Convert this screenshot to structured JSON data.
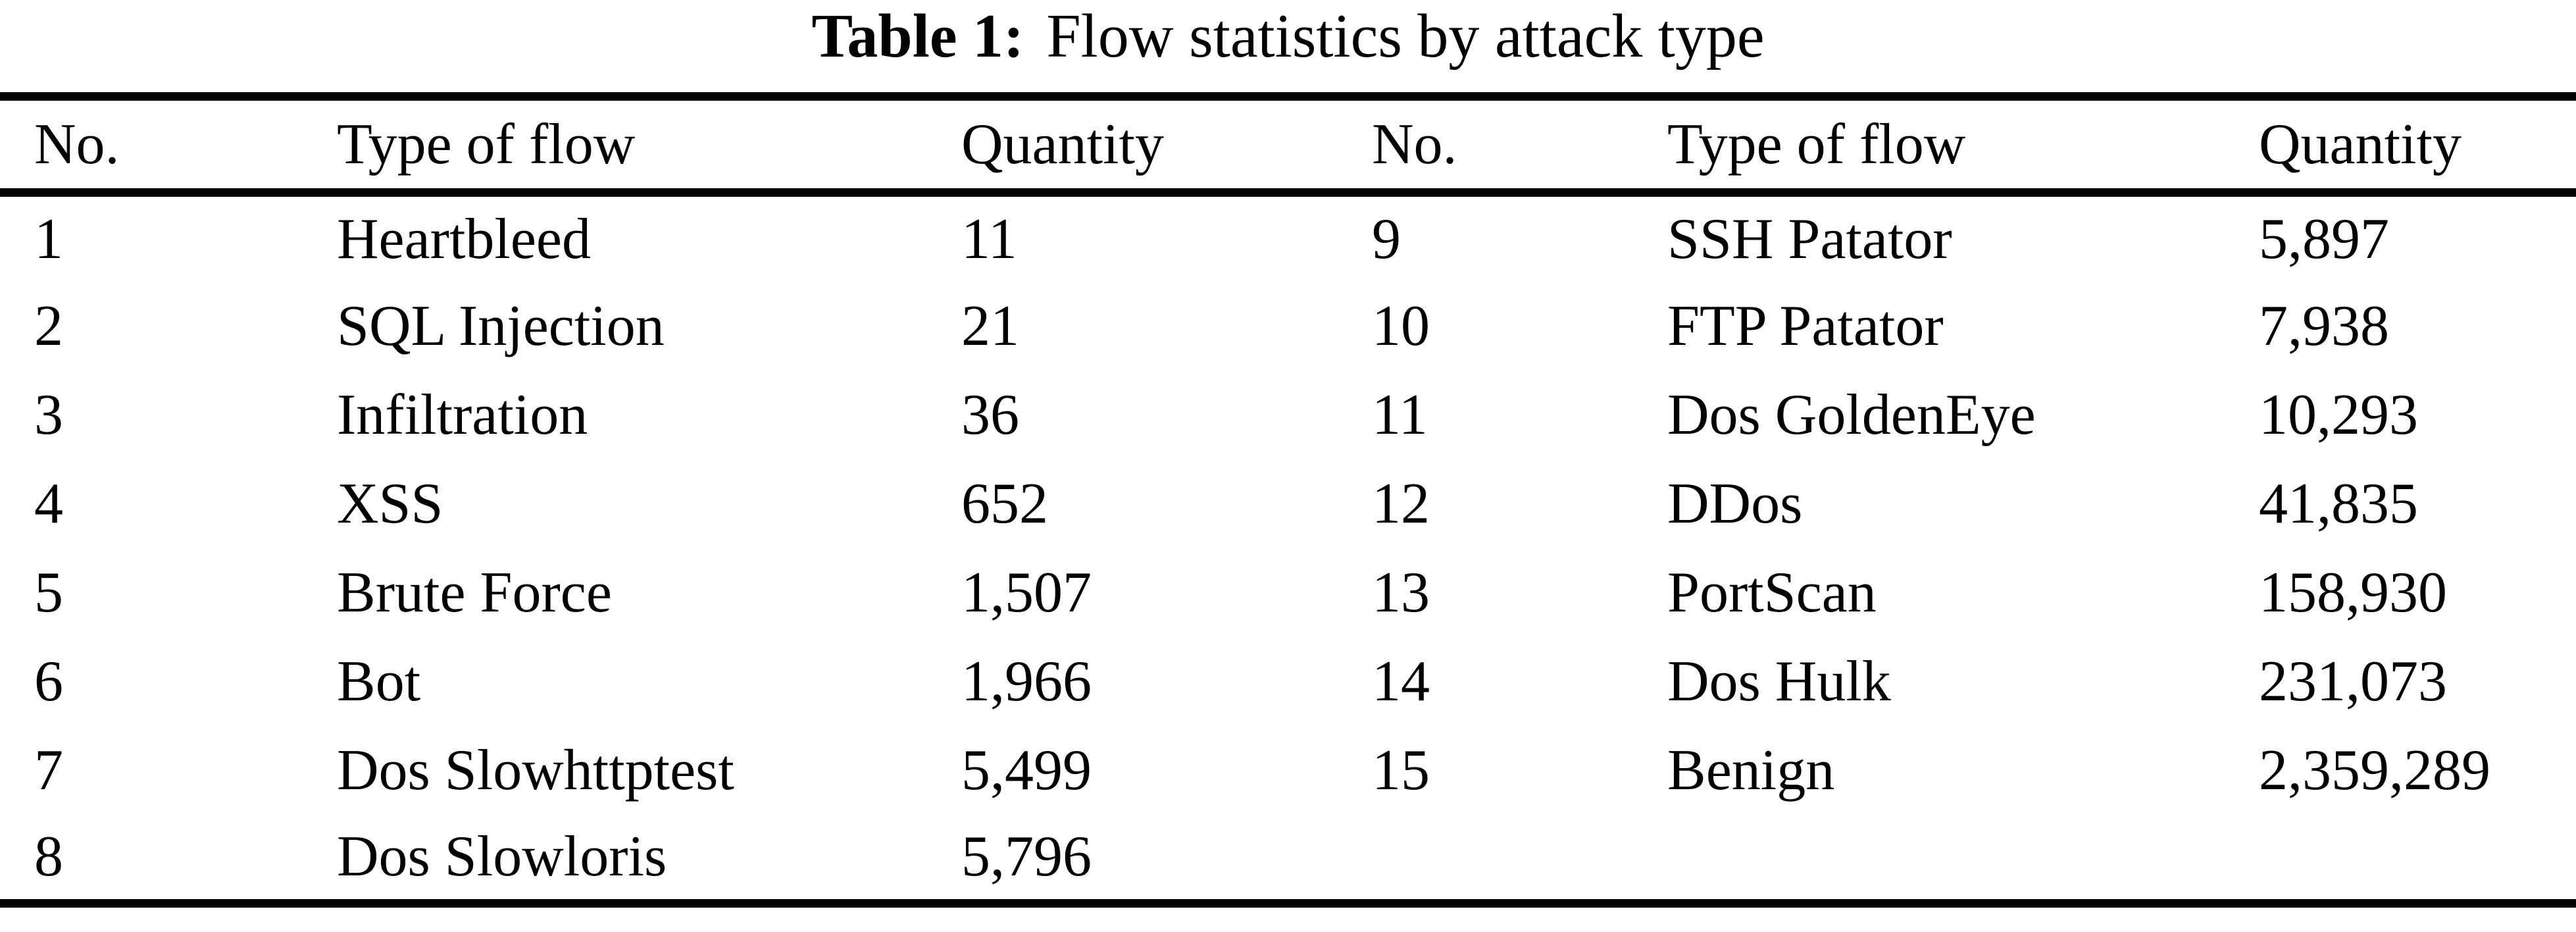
{
  "title": {
    "label": "Table 1:",
    "text": "Flow statistics by attack type"
  },
  "table": {
    "columns": [
      "No.",
      "Type of flow",
      "Quantity"
    ],
    "left": [
      {
        "no": "1",
        "type": "Heartbleed",
        "qty": "11"
      },
      {
        "no": "2",
        "type": "SQL Injection",
        "qty": "21"
      },
      {
        "no": "3",
        "type": "Infiltration",
        "qty": "36"
      },
      {
        "no": "4",
        "type": "XSS",
        "qty": "652"
      },
      {
        "no": "5",
        "type": "Brute Force",
        "qty": "1,507"
      },
      {
        "no": "6",
        "type": "Bot",
        "qty": "1,966"
      },
      {
        "no": "7",
        "type": "Dos Slowhttptest",
        "qty": "5,499"
      },
      {
        "no": "8",
        "type": "Dos Slowloris",
        "qty": "5,796"
      }
    ],
    "right": [
      {
        "no": "9",
        "type": "SSH Patator",
        "qty": "5,897"
      },
      {
        "no": "10",
        "type": "FTP Patator",
        "qty": "7,938"
      },
      {
        "no": "11",
        "type": "Dos GoldenEye",
        "qty": "10,293"
      },
      {
        "no": "12",
        "type": "DDos",
        "qty": "41,835"
      },
      {
        "no": "13",
        "type": "PortScan",
        "qty": "158,930"
      },
      {
        "no": "14",
        "type": "Dos Hulk",
        "qty": "231,073"
      },
      {
        "no": "15",
        "type": "Benign",
        "qty": "2,359,289"
      }
    ]
  },
  "colors": {
    "text": "#000000",
    "background": "#ffffff",
    "rule": "#000000"
  }
}
